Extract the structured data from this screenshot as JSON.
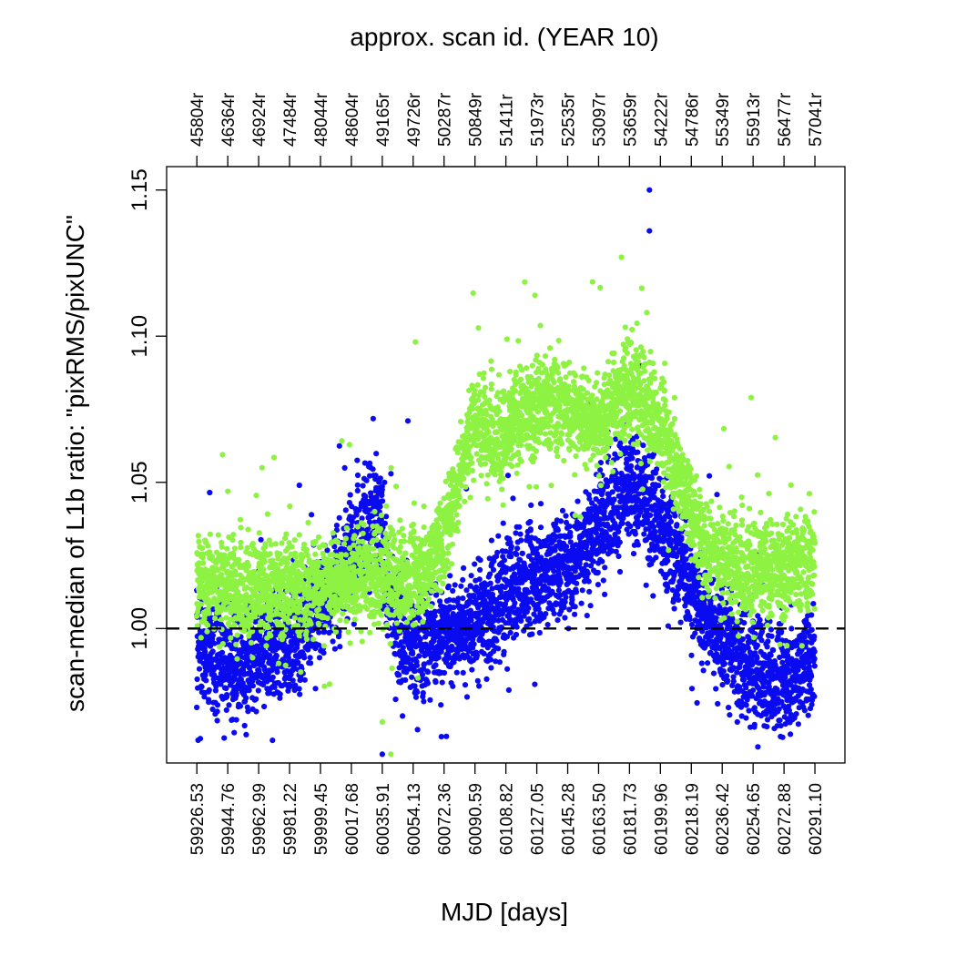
{
  "chart_data": {
    "type": "scatter",
    "xlabel": "MJD [days]",
    "top_xlabel": "approx. scan id. (YEAR 10)",
    "ylabel": "scan-median of L1b ratio: \"pixRMS/pixUNC\"",
    "xlim": [
      59908.7,
      60308.8
    ],
    "ylim": [
      0.954,
      1.158
    ],
    "x_ticks": [
      59926.53,
      59944.76,
      59962.99,
      59981.22,
      59999.45,
      60017.68,
      60035.91,
      60054.13,
      60072.36,
      60090.59,
      60108.82,
      60127.05,
      60145.28,
      60163.5,
      60181.73,
      60199.96,
      60218.19,
      60236.42,
      60254.65,
      60272.88,
      60291.1
    ],
    "x_tick_labels": [
      "59926.53",
      "59944.76",
      "59962.99",
      "59981.22",
      "59999.45",
      "60017.68",
      "60035.91",
      "60054.13",
      "60072.36",
      "60090.59",
      "60108.82",
      "60127.05",
      "60145.28",
      "60163.50",
      "60181.73",
      "60199.96",
      "60218.19",
      "60236.42",
      "60254.65",
      "60272.88",
      "60291.10"
    ],
    "top_tick_labels": [
      "45804r",
      "46364r",
      "46924r",
      "47484r",
      "48044r",
      "48604r",
      "49165r",
      "49726r",
      "50287r",
      "50849r",
      "51411r",
      "51973r",
      "52535r",
      "53097r",
      "53659r",
      "54222r",
      "54786r",
      "55349r",
      "55913r",
      "56477r",
      "57041r"
    ],
    "y_ticks": [
      1.0,
      1.05,
      1.1,
      1.15
    ],
    "y_tick_labels": [
      "1.00",
      "1.05",
      "1.10",
      "1.15"
    ],
    "reference_line": {
      "y": 1.0,
      "style": "dashed"
    },
    "grid": false,
    "series": [
      {
        "color": "#0b0bf0",
        "profile_x": [
          59926.5,
          59940,
          59950,
          59960,
          59970,
          59980,
          59990,
          60000,
          60010,
          60020,
          60030,
          60035,
          60040,
          60050,
          60060,
          60072,
          60080,
          60090,
          60100,
          60108,
          60115,
          60127,
          60135,
          60145,
          60155,
          60163,
          60170,
          60181,
          60190,
          60200,
          60210,
          60218,
          60225,
          60236,
          60245,
          60255,
          60265,
          60272,
          60280,
          60291
        ],
        "profile_y": [
          0.995,
          0.99,
          0.987,
          0.988,
          0.993,
          0.995,
          1.0,
          1.01,
          1.016,
          1.03,
          1.04,
          1.035,
          1.01,
          0.995,
          0.995,
          0.998,
          1.0,
          1.003,
          1.005,
          1.01,
          1.015,
          1.018,
          1.02,
          1.022,
          1.028,
          1.035,
          1.042,
          1.048,
          1.045,
          1.035,
          1.025,
          1.015,
          1.005,
          0.998,
          0.99,
          0.985,
          0.983,
          0.982,
          0.985,
          0.99
        ],
        "outliers": [
          [
            60193.5,
            1.15
          ],
          [
            60193.5,
            1.136
          ],
          [
            60051,
            1.071
          ],
          [
            60035.9,
            0.957
          ],
          [
            59926.5,
            0.973
          ],
          [
            60203,
            1.066
          ],
          [
            59987,
            1.049
          ]
        ]
      },
      {
        "color": "#8ef243",
        "profile_x": [
          59926.5,
          59940,
          59950,
          59960,
          59970,
          59980,
          59990,
          60000,
          60010,
          60020,
          60030,
          60040,
          60050,
          60060,
          60072,
          60080,
          60090,
          60100,
          60108,
          60115,
          60127,
          60135,
          60145,
          60155,
          60163,
          60170,
          60181,
          60190,
          60200,
          60210,
          60218,
          60225,
          60236,
          60245,
          60255,
          60265,
          60272,
          60280,
          60291
        ],
        "profile_y": [
          1.017,
          1.016,
          1.014,
          1.013,
          1.013,
          1.014,
          1.014,
          1.015,
          1.016,
          1.018,
          1.018,
          1.017,
          1.017,
          1.02,
          1.03,
          1.05,
          1.072,
          1.068,
          1.065,
          1.072,
          1.075,
          1.078,
          1.075,
          1.072,
          1.07,
          1.075,
          1.082,
          1.078,
          1.07,
          1.055,
          1.04,
          1.03,
          1.025,
          1.022,
          1.02,
          1.02,
          1.02,
          1.022,
          1.025
        ],
        "outliers": [
          [
            60177,
            1.127
          ],
          [
            60055.5,
            1.098
          ],
          [
            60126,
            1.114
          ],
          [
            60253.5,
            1.079
          ],
          [
            60041,
            0.957
          ],
          [
            59965,
            1.055
          ],
          [
            60035.9,
            0.968
          ]
        ]
      }
    ]
  }
}
